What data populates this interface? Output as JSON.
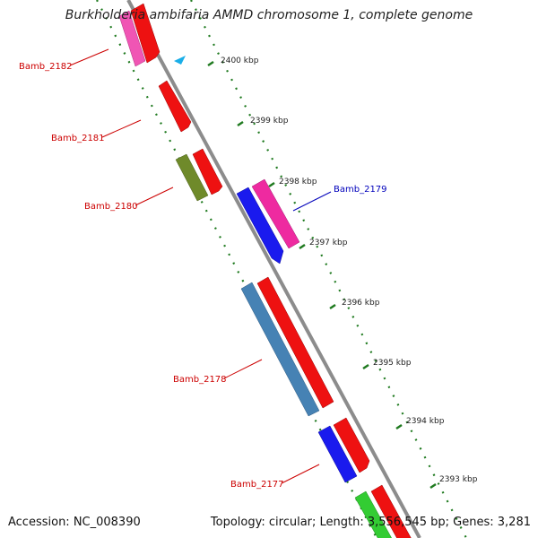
{
  "title": "Burkholderia ambifaria AMMD chromosome 1, complete genome",
  "footer": {
    "accession": "Accession: NC_008390",
    "summary": "Topology: circular; Length: 3,556,545 bp; Genes: 3,281"
  },
  "colors": {
    "background": "#ffffff",
    "backbone": "#8c8c8c",
    "tick": "#1f7a1f",
    "label_red": "#cc0000",
    "label_blue": "#0000bb",
    "gene_red": "#ee1111",
    "gene_blue": "#1a1aee",
    "gene_magenta": "#ee2aa0",
    "gene_pink": "#f055b4",
    "gene_olive": "#6f8a2a",
    "gene_steel": "#4682b4",
    "gene_green": "#33cc33",
    "marker": "#1aaee8"
  },
  "ticks": [
    {
      "label": "2400 kbp"
    },
    {
      "label": "2399 kbp"
    },
    {
      "label": "2398 kbp"
    },
    {
      "label": "2397 kbp"
    },
    {
      "label": "2396 kbp"
    },
    {
      "label": "2395 kbp"
    },
    {
      "label": "2394 kbp"
    },
    {
      "label": "2393 kbp"
    }
  ],
  "gene_labels": [
    {
      "text": "Bamb_2182",
      "color": "#cc0000"
    },
    {
      "text": "Bamb_2181",
      "color": "#cc0000"
    },
    {
      "text": "Bamb_2180",
      "color": "#cc0000"
    },
    {
      "text": "Bamb_2179",
      "color": "#0000bb"
    },
    {
      "text": "Bamb_2178",
      "color": "#cc0000"
    },
    {
      "text": "Bamb_2177",
      "color": "#cc0000"
    }
  ]
}
